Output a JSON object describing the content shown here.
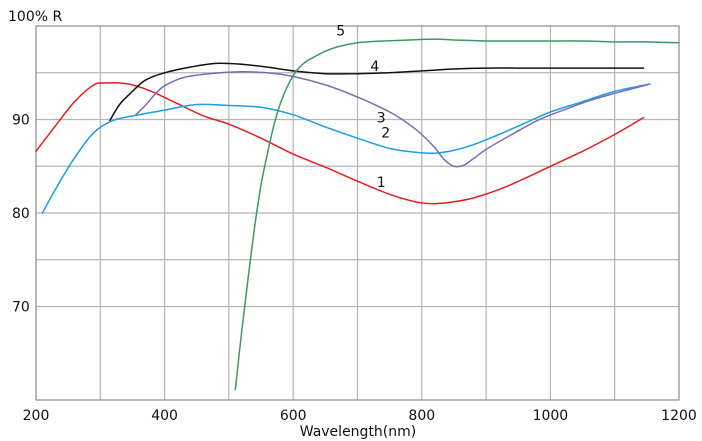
{
  "chart_data": {
    "type": "line",
    "title": "",
    "ylabel": "100%  R",
    "xlabel": "Wavelength(nm)",
    "xlim": [
      200,
      1200
    ],
    "ylim": [
      60,
      100
    ],
    "x_ticks": [
      200,
      400,
      600,
      800,
      1000,
      1200
    ],
    "y_ticks": [
      70,
      80,
      90
    ],
    "x_gridlines": [
      300,
      400,
      500,
      600,
      700,
      800,
      900,
      1000,
      1100
    ],
    "y_gridlines": [
      70,
      75,
      80,
      85,
      90,
      95
    ],
    "grid": true,
    "legend": "inline labels",
    "series": [
      {
        "name": "1",
        "color": "#e02020",
        "label_at": [
          730,
          82.8
        ],
        "x": [
          200,
          230,
          260,
          290,
          310,
          330,
          350,
          380,
          420,
          460,
          500,
          550,
          600,
          650,
          700,
          750,
          790,
          820,
          850,
          880,
          920,
          960,
          1000,
          1050,
          1100,
          1145
        ],
        "y": [
          86.6,
          89.3,
          91.9,
          93.7,
          93.9,
          93.9,
          93.7,
          93.0,
          91.7,
          90.4,
          89.5,
          88.0,
          86.3,
          84.9,
          83.4,
          82.0,
          81.2,
          81.0,
          81.2,
          81.6,
          82.5,
          83.7,
          85.0,
          86.6,
          88.4,
          90.2
        ]
      },
      {
        "name": "2",
        "color": "#1aa0dc",
        "label_at": [
          737,
          88.1
        ],
        "x": [
          210,
          230,
          260,
          290,
          320,
          360,
          400,
          450,
          500,
          550,
          600,
          650,
          700,
          750,
          790,
          820,
          850,
          880,
          920,
          960,
          1000,
          1050,
          1100,
          1155
        ],
        "y": [
          80.0,
          82.5,
          85.9,
          88.6,
          89.9,
          90.5,
          91.0,
          91.6,
          91.5,
          91.3,
          90.5,
          89.2,
          88.0,
          86.9,
          86.5,
          86.4,
          86.7,
          87.3,
          88.4,
          89.6,
          90.8,
          91.9,
          93.0,
          93.8
        ]
      },
      {
        "name": "3",
        "color": "#7a6cb4",
        "label_at": [
          730,
          89.7
        ],
        "x": [
          355,
          370,
          385,
          400,
          430,
          470,
          520,
          560,
          600,
          650,
          700,
          750,
          780,
          800,
          820,
          835,
          850,
          865,
          880,
          900,
          940,
          980,
          1020,
          1060,
          1100,
          1150
        ],
        "y": [
          90.5,
          91.5,
          92.7,
          93.6,
          94.5,
          94.9,
          95.1,
          95.0,
          94.6,
          93.7,
          92.4,
          90.8,
          89.5,
          88.4,
          87.0,
          85.7,
          85.0,
          85.1,
          85.8,
          86.8,
          88.4,
          89.9,
          91.0,
          92.0,
          92.8,
          93.7
        ]
      },
      {
        "name": "4",
        "color": "#111111",
        "label_at": [
          720,
          95.2
        ],
        "x": [
          315,
          330,
          350,
          370,
          400,
          440,
          480,
          520,
          560,
          600,
          650,
          700,
          750,
          800,
          850,
          900,
          950,
          1000,
          1050,
          1100,
          1145
        ],
        "y": [
          89.9,
          91.6,
          93.0,
          94.2,
          95.0,
          95.6,
          96.0,
          95.9,
          95.6,
          95.2,
          94.9,
          94.9,
          95.0,
          95.2,
          95.4,
          95.5,
          95.5,
          95.5,
          95.5,
          95.5,
          95.5
        ]
      },
      {
        "name": "5",
        "color": "#3a9a66",
        "label_at": [
          667,
          99.0
        ],
        "x": [
          510,
          520,
          530,
          540,
          550,
          560,
          570,
          580,
          590,
          600,
          610,
          620,
          630,
          650,
          670,
          700,
          740,
          780,
          820,
          850,
          900,
          950,
          1000,
          1050,
          1100,
          1150,
          1200
        ],
        "y": [
          61.1,
          67.4,
          73.1,
          78.5,
          83.0,
          86.4,
          89.4,
          91.7,
          93.4,
          94.7,
          95.6,
          96.2,
          96.6,
          97.3,
          97.8,
          98.2,
          98.4,
          98.5,
          98.6,
          98.5,
          98.4,
          98.4,
          98.4,
          98.4,
          98.3,
          98.3,
          98.2
        ]
      }
    ]
  }
}
